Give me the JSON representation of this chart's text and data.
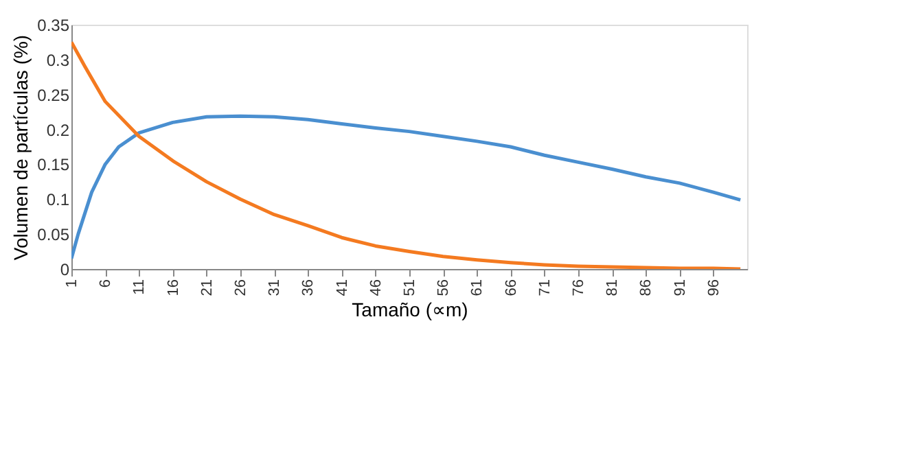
{
  "chart_data": {
    "type": "line",
    "xlabel": "Tamaño (∝m)",
    "ylabel": "Volumen de partículas (%)",
    "xlim": [
      1,
      101
    ],
    "xticks": [
      1,
      6,
      11,
      16,
      21,
      26,
      31,
      36,
      41,
      46,
      51,
      56,
      61,
      66,
      71,
      76,
      81,
      86,
      91,
      96
    ],
    "ylim": [
      0,
      0.35
    ],
    "yticks": [
      0,
      0.05,
      0.1,
      0.15,
      0.2,
      0.25,
      0.3,
      0.35
    ],
    "grid": false,
    "legend": false,
    "marker": "none",
    "line_style": "solid",
    "series": [
      {
        "color": "#4a8fd0",
        "x": [
          1,
          2,
          3,
          4,
          6,
          8,
          11,
          16,
          21,
          26,
          31,
          36,
          41,
          46,
          51,
          56,
          61,
          66,
          71,
          76,
          81,
          86,
          91,
          96,
          100
        ],
        "values": [
          0.015,
          0.05,
          0.08,
          0.11,
          0.15,
          0.175,
          0.195,
          0.21,
          0.218,
          0.219,
          0.218,
          0.214,
          0.208,
          0.202,
          0.197,
          0.19,
          0.183,
          0.175,
          0.163,
          0.153,
          0.143,
          0.132,
          0.123,
          0.11,
          0.099
        ]
      },
      {
        "color": "#f47a20",
        "x": [
          1,
          3,
          6,
          11,
          16,
          21,
          26,
          31,
          36,
          41,
          46,
          51,
          56,
          61,
          66,
          71,
          76,
          81,
          86,
          91,
          96,
          100
        ],
        "values": [
          0.325,
          0.29,
          0.24,
          0.19,
          0.155,
          0.125,
          0.1,
          0.078,
          0.062,
          0.045,
          0.033,
          0.025,
          0.018,
          0.013,
          0.009,
          0.006,
          0.004,
          0.003,
          0.002,
          0.001,
          0.001,
          0
        ]
      }
    ]
  }
}
